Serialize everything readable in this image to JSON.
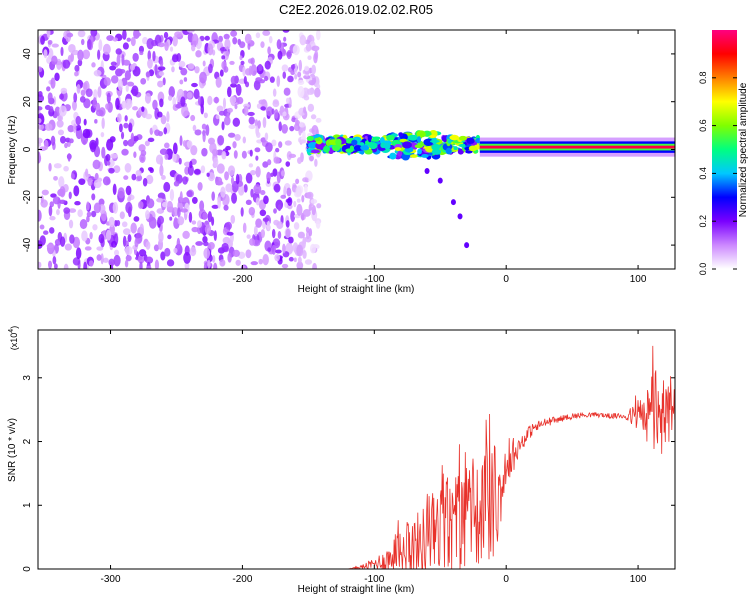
{
  "figure_title": "C2E2.2026.019.02.02.R05",
  "chart_data": [
    {
      "type": "heatmap",
      "title": "",
      "xlabel": "Height of straight line (km)",
      "ylabel": "Frequency (Hz)",
      "xlim": [
        -355,
        128
      ],
      "ylim": [
        -50,
        50
      ],
      "x_ticks": [
        "-300",
        "-200",
        "-100",
        "0",
        "100"
      ],
      "y_ticks": [
        "-40",
        "-20",
        "0",
        "20",
        "40"
      ],
      "colorbar": {
        "label": "Normalized spectral amplitude",
        "range": [
          0,
          1
        ],
        "ticks": [
          "0.0",
          "0.2",
          "0.4",
          "0.6",
          "0.8"
        ],
        "colors": [
          "#ffffff",
          "#cc88ff",
          "#7a00ff",
          "#0000ff",
          "#00c8ff",
          "#00ff80",
          "#80ff00",
          "#ffff00",
          "#ff8000",
          "#ff0000",
          "#ff0080"
        ]
      },
      "regions": [
        {
          "x_range": [
            -355,
            -150
          ],
          "frequency_range": [
            -50,
            50
          ],
          "amplitude_level": 0.1,
          "pattern": "scattered noise"
        },
        {
          "x_range": [
            -150,
            -20
          ],
          "frequency_center": 2,
          "frequency_width": 6,
          "amplitude_level": 0.5,
          "pattern": "broadened signal band"
        },
        {
          "x_range": [
            -20,
            128
          ],
          "frequency_center": 1,
          "frequency_width": 2,
          "amplitude_level": 0.95,
          "pattern": "narrow strong line"
        }
      ],
      "trace": {
        "x": [
          -60,
          -50,
          -40,
          -35,
          -30
        ],
        "y": [
          -9,
          -13,
          -22,
          -28,
          -40
        ]
      }
    },
    {
      "type": "line",
      "title": "",
      "xlabel": "Height of straight line (km)",
      "ylabel": "SNR (10 * v/v)",
      "y_multiplier_label": "(x10",
      "y_multiplier_exp": "4",
      "xlim": [
        -355,
        128
      ],
      "ylim": [
        0,
        3.75
      ],
      "x_ticks": [
        "-300",
        "-200",
        "-100",
        "0",
        "100"
      ],
      "y_ticks": [
        "0",
        "1",
        "2",
        "3"
      ],
      "series": [
        {
          "color": "#e8312a",
          "x": [
            -355,
            -120,
            -110,
            -100,
            -90,
            -80,
            -70,
            -60,
            -50,
            -40,
            -30,
            -20,
            -10,
            -5,
            0,
            10,
            20,
            30,
            40,
            50,
            60,
            70,
            80,
            90,
            100,
            105,
            110,
            115,
            120,
            125,
            128
          ],
          "y": [
            0.0,
            0.0,
            0.03,
            0.08,
            0.15,
            0.25,
            0.35,
            0.45,
            0.55,
            0.65,
            0.75,
            0.85,
            0.95,
            1.2,
            1.5,
            1.95,
            2.2,
            2.3,
            2.35,
            2.4,
            2.42,
            2.42,
            2.4,
            2.4,
            2.4,
            2.3,
            2.5,
            2.4,
            2.45,
            2.4,
            2.4
          ],
          "noise": [
            0.0,
            0.0,
            0.03,
            0.1,
            0.2,
            0.35,
            0.5,
            0.6,
            0.7,
            0.75,
            0.8,
            0.8,
            0.9,
            0.6,
            0.3,
            0.15,
            0.1,
            0.07,
            0.05,
            0.05,
            0.04,
            0.04,
            0.04,
            0.05,
            0.25,
            0.4,
            0.6,
            0.8,
            0.6,
            0.4,
            0.3
          ]
        }
      ]
    }
  ]
}
